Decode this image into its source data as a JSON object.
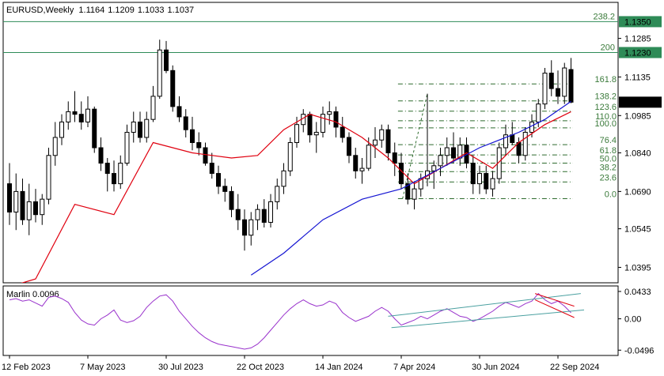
{
  "chart_data": {
    "type": "candlestick",
    "symbol": "EURUSD",
    "timeframe": "Weekly",
    "ohlc": [
      "1.1164",
      "1.1209",
      "1.1033",
      "1.1037"
    ],
    "price_axis": {
      "ticks": [
        "1.1285",
        "1.1135",
        "1.0985",
        "1.0840",
        "1.0690",
        "1.0545",
        "1.0395"
      ],
      "ylim": [
        1.0335,
        1.1425
      ]
    },
    "time_axis": {
      "labels": [
        "12 Feb 2023",
        "7 May 2023",
        "30 Jul 2023",
        "22 Oct 2023",
        "14 Jan 2024",
        "7 Apr 2024",
        "30 Jun 2024",
        "22 Sep 2024"
      ],
      "label_bar_index": [
        0,
        12,
        24,
        36,
        48,
        60,
        72,
        84
      ],
      "bar_count": 87
    },
    "horizontal_levels": [
      {
        "label": "1.1350",
        "price": 1.135,
        "left_label": "238.2",
        "color": "#2e8b57"
      },
      {
        "label": "1.1230",
        "price": 1.123,
        "left_label": "200",
        "color": "#2e8b57"
      }
    ],
    "current_price": {
      "label": "1.1037",
      "price": 1.1037
    },
    "fib_levels": [
      {
        "label": "161.8",
        "price": 1.1108
      },
      {
        "label": "138.2",
        "price": 1.1042
      },
      {
        "label": "123.6",
        "price": 1.1002
      },
      {
        "label": "110.0",
        "price": 1.0965
      },
      {
        "label": "100.0",
        "price": 1.0937
      },
      {
        "label": "76.4",
        "price": 1.0872
      },
      {
        "label": "61.8",
        "price": 1.0832
      },
      {
        "label": "50.0",
        "price": 1.08
      },
      {
        "label": "38.2",
        "price": 1.0767
      },
      {
        "label": "23.6",
        "price": 1.0727
      },
      {
        "label": "0.0",
        "price": 1.0662
      }
    ],
    "candles": [
      [
        1.072,
        1.08,
        1.056,
        1.061
      ],
      [
        1.061,
        1.076,
        1.054,
        1.069
      ],
      [
        1.069,
        1.074,
        1.056,
        1.058
      ],
      [
        1.058,
        1.072,
        1.052,
        1.065
      ],
      [
        1.065,
        1.07,
        1.057,
        1.06
      ],
      [
        1.06,
        1.068,
        1.056,
        1.066
      ],
      [
        1.066,
        1.086,
        1.064,
        1.083
      ],
      [
        1.083,
        1.096,
        1.079,
        1.09
      ],
      [
        1.09,
        1.099,
        1.087,
        1.096
      ],
      [
        1.096,
        1.104,
        1.093,
        1.1
      ],
      [
        1.1,
        1.108,
        1.096,
        1.099
      ],
      [
        1.099,
        1.104,
        1.093,
        1.096
      ],
      [
        1.096,
        1.106,
        1.094,
        1.101
      ],
      [
        1.101,
        1.102,
        1.084,
        1.086
      ],
      [
        1.086,
        1.09,
        1.077,
        1.08
      ],
      [
        1.08,
        1.082,
        1.069,
        1.076
      ],
      [
        1.076,
        1.081,
        1.069,
        1.072
      ],
      [
        1.072,
        1.083,
        1.07,
        1.08
      ],
      [
        1.08,
        1.095,
        1.079,
        1.092
      ],
      [
        1.092,
        1.1,
        1.088,
        1.096
      ],
      [
        1.096,
        1.1,
        1.088,
        1.09
      ],
      [
        1.09,
        1.1,
        1.088,
        1.097
      ],
      [
        1.097,
        1.11,
        1.096,
        1.106
      ],
      [
        1.106,
        1.128,
        1.105,
        1.124
      ],
      [
        1.124,
        1.1275,
        1.115,
        1.116
      ],
      [
        1.116,
        1.118,
        1.1,
        1.102
      ],
      [
        1.102,
        1.106,
        1.096,
        1.098
      ],
      [
        1.098,
        1.101,
        1.09,
        1.093
      ],
      [
        1.093,
        1.098,
        1.085,
        1.088
      ],
      [
        1.088,
        1.092,
        1.083,
        1.086
      ],
      [
        1.086,
        1.088,
        1.079,
        1.08
      ],
      [
        1.08,
        1.084,
        1.074,
        1.076
      ],
      [
        1.076,
        1.079,
        1.068,
        1.071
      ],
      [
        1.071,
        1.074,
        1.065,
        1.069
      ],
      [
        1.069,
        1.071,
        1.059,
        1.062
      ],
      [
        1.062,
        1.068,
        1.054,
        1.058
      ],
      [
        1.058,
        1.062,
        1.046,
        1.052
      ],
      [
        1.052,
        1.061,
        1.048,
        1.058
      ],
      [
        1.058,
        1.064,
        1.054,
        1.062
      ],
      [
        1.062,
        1.066,
        1.055,
        1.057
      ],
      [
        1.057,
        1.068,
        1.055,
        1.065
      ],
      [
        1.065,
        1.074,
        1.062,
        1.071
      ],
      [
        1.071,
        1.08,
        1.068,
        1.077
      ],
      [
        1.077,
        1.09,
        1.075,
        1.088
      ],
      [
        1.088,
        1.098,
        1.086,
        1.095
      ],
      [
        1.095,
        1.101,
        1.092,
        1.099
      ],
      [
        1.099,
        1.1,
        1.088,
        1.091
      ],
      [
        1.091,
        1.096,
        1.084,
        1.092
      ],
      [
        1.092,
        1.102,
        1.09,
        1.099
      ],
      [
        1.099,
        1.104,
        1.095,
        1.1
      ],
      [
        1.1,
        1.102,
        1.09,
        1.094
      ],
      [
        1.094,
        1.098,
        1.088,
        1.09
      ],
      [
        1.09,
        1.092,
        1.08,
        1.083
      ],
      [
        1.083,
        1.086,
        1.074,
        1.077
      ],
      [
        1.077,
        1.082,
        1.072,
        1.078
      ],
      [
        1.078,
        1.09,
        1.077,
        1.087
      ],
      [
        1.087,
        1.094,
        1.082,
        1.089
      ],
      [
        1.089,
        1.095,
        1.086,
        1.093
      ],
      [
        1.093,
        1.095,
        1.081,
        1.084
      ],
      [
        1.084,
        1.088,
        1.075,
        1.08
      ],
      [
        1.08,
        1.084,
        1.07,
        1.072
      ],
      [
        1.072,
        1.076,
        1.064,
        1.066
      ],
      [
        1.066,
        1.073,
        1.062,
        1.07
      ],
      [
        1.07,
        1.076,
        1.067,
        1.074
      ],
      [
        1.074,
        1.107,
        1.071,
        1.077
      ],
      [
        1.077,
        1.081,
        1.07,
        1.079
      ],
      [
        1.079,
        1.086,
        1.075,
        1.083
      ],
      [
        1.083,
        1.09,
        1.079,
        1.086
      ],
      [
        1.086,
        1.092,
        1.08,
        1.082
      ],
      [
        1.082,
        1.09,
        1.079,
        1.087
      ],
      [
        1.087,
        1.09,
        1.078,
        1.08
      ],
      [
        1.08,
        1.083,
        1.068,
        1.072
      ],
      [
        1.072,
        1.079,
        1.068,
        1.076
      ],
      [
        1.076,
        1.079,
        1.068,
        1.07
      ],
      [
        1.07,
        1.077,
        1.067,
        1.074
      ],
      [
        1.074,
        1.088,
        1.072,
        1.086
      ],
      [
        1.086,
        1.095,
        1.083,
        1.091
      ],
      [
        1.091,
        1.096,
        1.087,
        1.088
      ],
      [
        1.088,
        1.09,
        1.08,
        1.083
      ],
      [
        1.083,
        1.094,
        1.081,
        1.092
      ],
      [
        1.092,
        1.099,
        1.09,
        1.096
      ],
      [
        1.096,
        1.105,
        1.094,
        1.103
      ],
      [
        1.103,
        1.117,
        1.101,
        1.115
      ],
      [
        1.115,
        1.12,
        1.106,
        1.109
      ],
      [
        1.109,
        1.116,
        1.103,
        1.106
      ],
      [
        1.106,
        1.119,
        1.103,
        1.117
      ],
      [
        1.1164,
        1.1209,
        1.1033,
        1.1037
      ]
    ],
    "moving_averages": [
      {
        "color": "#e0000f",
        "role": "fast",
        "points": [
          [
            0,
            1.032
          ],
          [
            4,
            1.035
          ],
          [
            10,
            1.064
          ],
          [
            16,
            1.06
          ],
          [
            22,
            1.088
          ],
          [
            28,
            1.084
          ],
          [
            34,
            1.082
          ],
          [
            38,
            1.083
          ],
          [
            42,
            1.093
          ],
          [
            46,
            1.099
          ],
          [
            50,
            1.096
          ],
          [
            54,
            1.09
          ],
          [
            58,
            1.082
          ],
          [
            62,
            1.072
          ],
          [
            66,
            1.078
          ],
          [
            70,
            1.084
          ],
          [
            74,
            1.078
          ],
          [
            78,
            1.088
          ],
          [
            82,
            1.095
          ],
          [
            86,
            1.1
          ]
        ]
      },
      {
        "color": "#1414d2",
        "role": "slow",
        "points": [
          [
            37,
            1.0365
          ],
          [
            42,
            1.045
          ],
          [
            48,
            1.058
          ],
          [
            54,
            1.066
          ],
          [
            60,
            1.07
          ],
          [
            66,
            1.078
          ],
          [
            72,
            1.086
          ],
          [
            78,
            1.092
          ],
          [
            82,
            1.097
          ],
          [
            86,
            1.104
          ]
        ]
      }
    ],
    "indicator": {
      "name": "Marlin",
      "value": "0.0096",
      "ticks": [
        "0.0433",
        "0.00",
        "-0.0496"
      ],
      "ylim": [
        -0.058,
        0.052
      ],
      "line_color": "#9932cc",
      "values": [
        0.03,
        0.032,
        0.028,
        0.03,
        0.025,
        0.02,
        0.034,
        0.036,
        0.032,
        0.026,
        0.01,
        -0.002,
        -0.008,
        -0.01,
        0.0,
        0.006,
        0.014,
        -0.002,
        -0.006,
        -0.003,
        0.004,
        0.018,
        0.028,
        0.036,
        0.038,
        0.028,
        0.012,
        0.0,
        -0.012,
        -0.022,
        -0.03,
        -0.036,
        -0.04,
        -0.042,
        -0.044,
        -0.046,
        -0.048,
        -0.046,
        -0.04,
        -0.03,
        -0.018,
        -0.006,
        0.006,
        0.016,
        0.024,
        0.03,
        0.024,
        0.02,
        0.022,
        0.028,
        0.024,
        0.01,
        0.002,
        -0.004,
        0.0,
        0.004,
        0.012,
        0.018,
        0.012,
        0.0,
        -0.01,
        -0.006,
        -0.002,
        0.004,
        0.0,
        0.006,
        0.012,
        0.016,
        0.01,
        0.004,
        0.002,
        -0.004,
        0.0,
        0.006,
        0.012,
        0.02,
        0.026,
        0.022,
        0.018,
        0.024,
        0.028,
        0.04,
        0.03,
        0.024,
        0.028,
        0.02,
        0.0096
      ]
    }
  }
}
